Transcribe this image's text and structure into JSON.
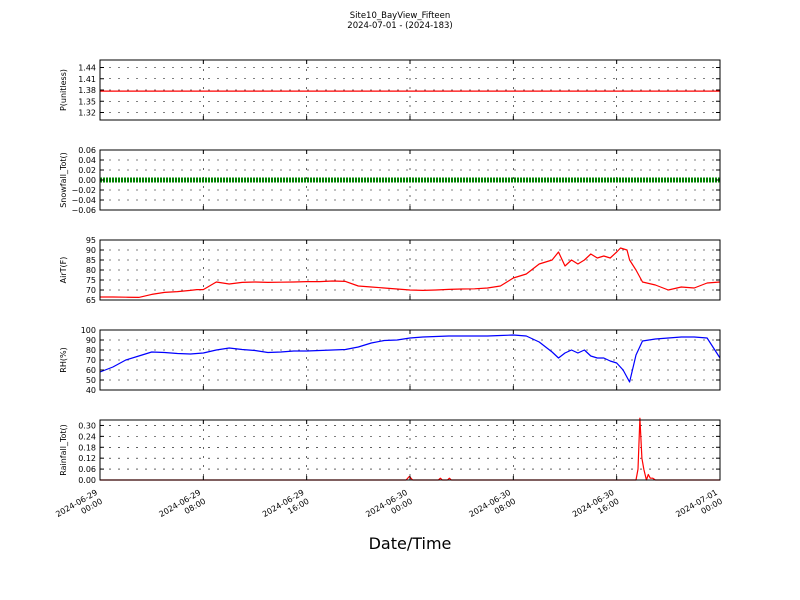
{
  "figure": {
    "title": "Site10_BayView_Fifteen",
    "subtitle": "2024-07-01 - (2024-183)",
    "xlabel": "Date/Time"
  },
  "chart_data": [
    {
      "type": "line",
      "ylabel": "P(unitless)",
      "ylim": [
        1.3,
        1.46
      ],
      "yticks": [
        1.32,
        1.35,
        1.38,
        1.41,
        1.44
      ],
      "ytick_labels": [
        "1.32",
        "1.35",
        "1.38",
        "1.41",
        "1.44"
      ],
      "grid": true,
      "color": "#ff0000",
      "x": [
        0,
        48
      ],
      "values": [
        1.377,
        1.377
      ]
    },
    {
      "type": "scatter",
      "ylabel": "Snowfall_Tot()",
      "ylim": [
        -0.06,
        0.06
      ],
      "yticks": [
        -0.06,
        -0.04,
        -0.02,
        0.0,
        0.02,
        0.04,
        0.06
      ],
      "ytick_labels": [
        "−0.06",
        "−0.04",
        "−0.02",
        "0.00",
        "0.02",
        "0.04",
        "0.06"
      ],
      "grid": true,
      "color": "#008000",
      "x": [
        0,
        48
      ],
      "values": [
        0.0,
        0.0
      ]
    },
    {
      "type": "line",
      "ylabel": "AirT(F)",
      "ylim": [
        65,
        95
      ],
      "yticks": [
        65,
        70,
        75,
        80,
        85,
        90,
        95
      ],
      "ytick_labels": [
        "65",
        "70",
        "75",
        "80",
        "85",
        "90",
        "95"
      ],
      "grid": true,
      "color": "#ff0000",
      "x": [
        0,
        1,
        2,
        3,
        4,
        5,
        6,
        7,
        7.5,
        8,
        9,
        10,
        11,
        12,
        13,
        14,
        15,
        16,
        17,
        18,
        19,
        20,
        21,
        22,
        23,
        24,
        25,
        26,
        27,
        28,
        29,
        30,
        31,
        32,
        33,
        34,
        35,
        35.5,
        36,
        36.5,
        37,
        37.5,
        38,
        38.5,
        39,
        39.5,
        40,
        40.3,
        40.8,
        41,
        41.5,
        42,
        43,
        44,
        45,
        46,
        47,
        48
      ],
      "values": [
        66.5,
        66.5,
        66.4,
        66.3,
        67.8,
        68.8,
        69.2,
        69.8,
        70.2,
        70.2,
        74.0,
        73.0,
        73.8,
        74.0,
        73.8,
        73.9,
        74.0,
        74.2,
        74.2,
        74.5,
        74.3,
        72.0,
        71.5,
        71.0,
        70.5,
        70.0,
        69.8,
        70.0,
        70.3,
        70.5,
        70.6,
        71.0,
        72.0,
        76.0,
        78.0,
        83.0,
        85.0,
        89.0,
        82.0,
        85.0,
        83.0,
        85.0,
        88.0,
        86.0,
        87.0,
        86.0,
        89.0,
        91.0,
        90.0,
        85.0,
        80.0,
        74.0,
        72.5,
        70.0,
        71.5,
        71.0,
        73.5,
        74.0
      ]
    },
    {
      "type": "line",
      "ylabel": "RH(%)",
      "ylim": [
        40,
        100
      ],
      "yticks": [
        40,
        50,
        60,
        70,
        80,
        90,
        100
      ],
      "ytick_labels": [
        "40",
        "50",
        "60",
        "70",
        "80",
        "90",
        "100"
      ],
      "grid": true,
      "color": "#0000ff",
      "x": [
        0,
        1,
        2,
        3,
        4,
        5,
        6,
        7,
        8,
        9,
        10,
        11,
        12,
        13,
        14,
        15,
        16,
        17,
        18,
        19,
        20,
        21,
        22,
        23,
        24,
        25,
        26,
        27,
        28,
        29,
        30,
        31,
        32,
        33,
        34,
        35,
        35.5,
        36,
        36.5,
        37,
        37.5,
        38,
        38.5,
        39,
        39.5,
        40,
        40.5,
        41,
        41.5,
        42,
        43,
        44,
        45,
        46,
        47,
        48
      ],
      "values": [
        58,
        63,
        70,
        74,
        78,
        77.5,
        76.5,
        76,
        77,
        80,
        82,
        80.5,
        79.5,
        77.5,
        78,
        79,
        79,
        79.5,
        80,
        80.5,
        83,
        87,
        89.5,
        90,
        92,
        93,
        93.5,
        94,
        94,
        94,
        94,
        94.5,
        95,
        94,
        88,
        78,
        72,
        77,
        80,
        77,
        80,
        74,
        72,
        72,
        69,
        67,
        60,
        48,
        75,
        89,
        91,
        92,
        93,
        93,
        92,
        72
      ]
    },
    {
      "type": "line",
      "ylabel": "Rainfall_Tot()",
      "ylim": [
        0,
        0.33
      ],
      "yticks": [
        0.0,
        0.06,
        0.12,
        0.18,
        0.24,
        0.3
      ],
      "ytick_labels": [
        "0.00",
        "0.06",
        "0.12",
        "0.18",
        "0.24",
        "0.30"
      ],
      "grid": true,
      "color": "#ff0000",
      "x": [
        0,
        23.7,
        23.95,
        24.2,
        26.2,
        26.35,
        26.5,
        26.9,
        27.05,
        27.2,
        41.5,
        41.65,
        41.8,
        41.95,
        42.1,
        42.3,
        42.45,
        42.6,
        42.8,
        43.0,
        48
      ],
      "values": [
        0,
        0,
        0.02,
        0,
        0,
        0.01,
        0,
        0,
        0.01,
        0,
        0,
        0.06,
        0.34,
        0.12,
        0.06,
        0.0,
        0.03,
        0.01,
        0.01,
        0,
        0
      ]
    }
  ],
  "x_axis": {
    "range_hours": [
      0,
      48
    ],
    "ticks_hours": [
      0,
      8,
      16,
      24,
      32,
      40,
      48
    ],
    "tick_labels": [
      [
        "2024-06-29",
        "00:00"
      ],
      [
        "2024-06-29",
        "08:00"
      ],
      [
        "2024-06-29",
        "16:00"
      ],
      [
        "2024-06-30",
        "00:00"
      ],
      [
        "2024-06-30",
        "08:00"
      ],
      [
        "2024-06-30",
        "16:00"
      ],
      [
        "2024-07-01",
        "00:00"
      ]
    ]
  }
}
